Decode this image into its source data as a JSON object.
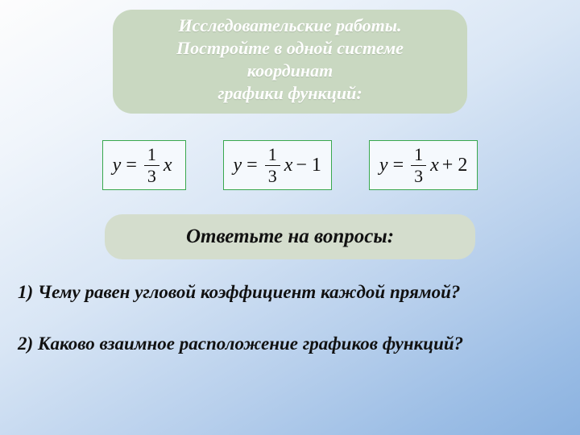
{
  "header": {
    "bg_color": "#c9d8c1",
    "text_color": "#ffffff",
    "font_size": 22,
    "lines": [
      "Исследовательские работы.",
      "Постройте в одной системе",
      "координат",
      "графики функций:"
    ]
  },
  "formulas": {
    "border_color": "#39a84e",
    "box_bg": "#f5f9fd",
    "font_size": 24,
    "items": [
      {
        "lhs": "y",
        "num": "1",
        "den": "3",
        "var": "x",
        "tail": ""
      },
      {
        "lhs": "y",
        "num": "1",
        "den": "3",
        "var": "x",
        "tail": "− 1"
      },
      {
        "lhs": "y",
        "num": "1",
        "den": "3",
        "var": "x",
        "tail": "+ 2"
      }
    ]
  },
  "answer_prompt": {
    "bg_color": "#d4ddcd",
    "text": "Ответьте на вопросы:",
    "font_size": 25
  },
  "questions": {
    "font_size": 23,
    "items": [
      "1) Чему равен угловой коэффициент каждой прямой?",
      "2) Каково взаимное расположение графиков функций?"
    ]
  },
  "background": {
    "gradient_stops": [
      "#fdfdfd",
      "#f0f5fb",
      "#d9e6f5",
      "#b7cfec",
      "#9bbde5",
      "#8bb2e0"
    ]
  }
}
